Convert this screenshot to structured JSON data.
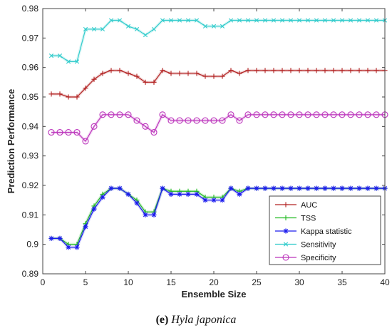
{
  "chart_data": {
    "type": "line",
    "xlabel": "Ensemble Size",
    "ylabel": "Prediction Performance",
    "xlim": [
      0,
      40
    ],
    "ylim": [
      0.89,
      0.98
    ],
    "xticks": [
      "0",
      "5",
      "10",
      "15",
      "20",
      "25",
      "30",
      "35",
      "40"
    ],
    "yticks": [
      "0.89",
      "0.9",
      "0.91",
      "0.92",
      "0.93",
      "0.94",
      "0.95",
      "0.96",
      "0.97",
      "0.98"
    ],
    "grid": false,
    "legend_position": "bottom-right",
    "x": [
      1,
      2,
      3,
      4,
      5,
      6,
      7,
      8,
      9,
      10,
      11,
      12,
      13,
      14,
      15,
      16,
      17,
      18,
      19,
      20,
      21,
      22,
      23,
      24,
      25,
      26,
      27,
      28,
      29,
      30,
      31,
      32,
      33,
      34,
      35,
      36,
      37,
      38,
      39,
      40
    ],
    "series": [
      {
        "name": "AUC",
        "color": "#b22222",
        "marker": "plus",
        "values": [
          0.951,
          0.951,
          0.95,
          0.95,
          0.953,
          0.956,
          0.958,
          0.959,
          0.959,
          0.958,
          0.957,
          0.955,
          0.955,
          0.959,
          0.958,
          0.958,
          0.958,
          0.958,
          0.957,
          0.957,
          0.957,
          0.959,
          0.958,
          0.959,
          0.959,
          0.959,
          0.959,
          0.959,
          0.959,
          0.959,
          0.959,
          0.959,
          0.959,
          0.959,
          0.959,
          0.959,
          0.959,
          0.959,
          0.959,
          0.959
        ]
      },
      {
        "name": "TSS",
        "color": "#22bb22",
        "marker": "plus",
        "values": [
          0.902,
          0.902,
          0.9,
          0.9,
          0.907,
          0.913,
          0.917,
          0.919,
          0.919,
          0.917,
          0.915,
          0.911,
          0.911,
          0.919,
          0.918,
          0.918,
          0.918,
          0.918,
          0.916,
          0.916,
          0.916,
          0.919,
          0.918,
          0.919,
          0.919,
          0.919,
          0.919,
          0.919,
          0.919,
          0.919,
          0.919,
          0.919,
          0.919,
          0.919,
          0.919,
          0.919,
          0.919,
          0.919,
          0.919,
          0.919
        ]
      },
      {
        "name": "Kappa statistic",
        "color": "#1a1aee",
        "marker": "star",
        "values": [
          0.902,
          0.902,
          0.899,
          0.899,
          0.906,
          0.912,
          0.916,
          0.919,
          0.919,
          0.917,
          0.914,
          0.91,
          0.91,
          0.919,
          0.917,
          0.917,
          0.917,
          0.917,
          0.915,
          0.915,
          0.915,
          0.919,
          0.917,
          0.919,
          0.919,
          0.919,
          0.919,
          0.919,
          0.919,
          0.919,
          0.919,
          0.919,
          0.919,
          0.919,
          0.919,
          0.919,
          0.919,
          0.919,
          0.919,
          0.919
        ]
      },
      {
        "name": "Sensitivity",
        "color": "#33cccc",
        "marker": "x",
        "values": [
          0.964,
          0.964,
          0.962,
          0.962,
          0.973,
          0.973,
          0.973,
          0.976,
          0.976,
          0.974,
          0.973,
          0.971,
          0.973,
          0.976,
          0.976,
          0.976,
          0.976,
          0.976,
          0.974,
          0.974,
          0.974,
          0.976,
          0.976,
          0.976,
          0.976,
          0.976,
          0.976,
          0.976,
          0.976,
          0.976,
          0.976,
          0.976,
          0.976,
          0.976,
          0.976,
          0.976,
          0.976,
          0.976,
          0.976,
          0.976
        ]
      },
      {
        "name": "Specificity",
        "color": "#bb33bb",
        "marker": "circle",
        "values": [
          0.938,
          0.938,
          0.938,
          0.938,
          0.935,
          0.94,
          0.944,
          0.944,
          0.944,
          0.944,
          0.942,
          0.94,
          0.938,
          0.944,
          0.942,
          0.942,
          0.942,
          0.942,
          0.942,
          0.942,
          0.942,
          0.944,
          0.942,
          0.944,
          0.944,
          0.944,
          0.944,
          0.944,
          0.944,
          0.944,
          0.944,
          0.944,
          0.944,
          0.944,
          0.944,
          0.944,
          0.944,
          0.944,
          0.944,
          0.944
        ]
      }
    ]
  },
  "caption": {
    "label": "(e)",
    "species": "Hyla japonica"
  }
}
